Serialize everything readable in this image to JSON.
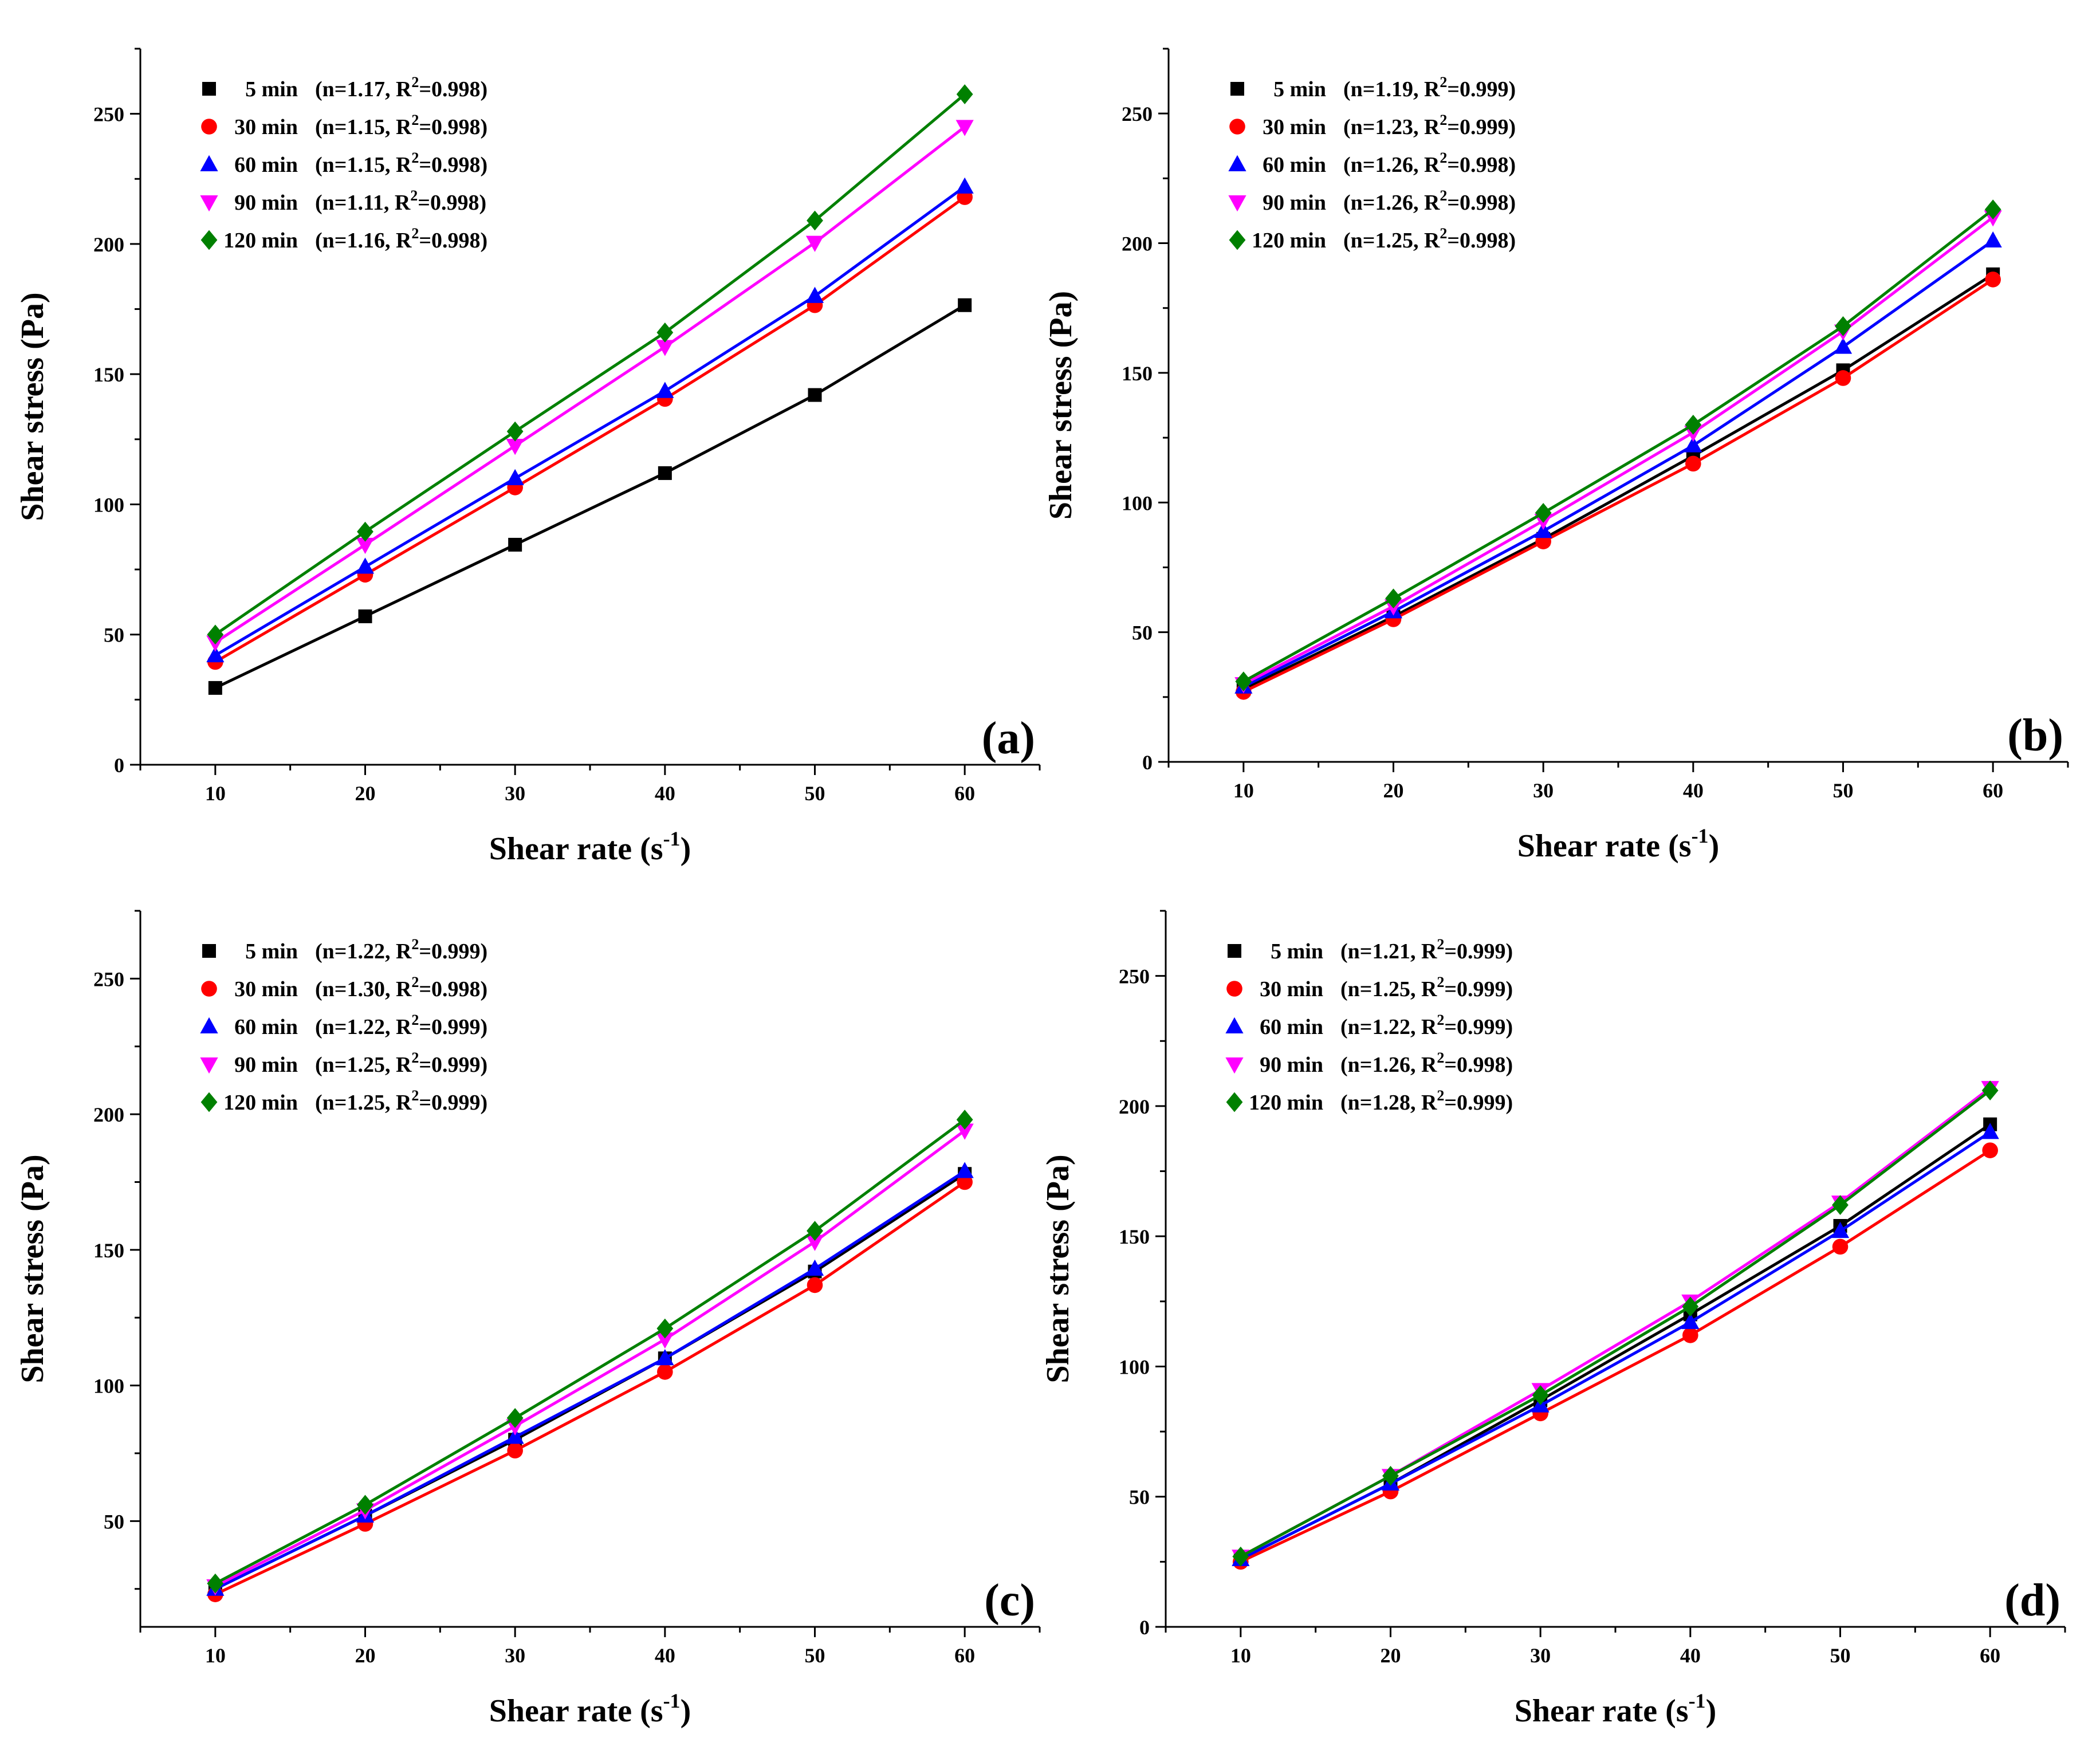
{
  "chart_data": [
    {
      "type": "line",
      "panel_label": "(a)",
      "xlabel": "Shear rate (s",
      "xlabel_sup": "-1",
      "xlabel_close": ")",
      "ylabel": "Shear stress (Pa)",
      "xlim": [
        5,
        65
      ],
      "ylim": [
        0,
        275
      ],
      "xticks": [
        10,
        20,
        30,
        40,
        50,
        60
      ],
      "yticks": [
        0,
        50,
        100,
        150,
        200,
        250
      ],
      "x": [
        10,
        20,
        30,
        40,
        50,
        60
      ],
      "legend_position": "top-left",
      "series": [
        {
          "name": "5 min",
          "stats": "(n=1.17, R",
          "r2": "=0.998)",
          "values": [
            29.5,
            57,
            84.5,
            112,
            142,
            176.5
          ]
        },
        {
          "name": "30 min",
          "stats": "(n=1.15, R",
          "r2": "=0.998)",
          "values": [
            39.5,
            73,
            106.5,
            140.5,
            176.5,
            218
          ]
        },
        {
          "name": "60 min",
          "stats": "(n=1.15, R",
          "r2": "=0.998)",
          "values": [
            42,
            76,
            110,
            143.5,
            180,
            222
          ]
        },
        {
          "name": "90 min",
          "stats": "(n=1.11, R",
          "r2": "=0.998)",
          "values": [
            47,
            84.5,
            122.5,
            160.5,
            200.5,
            245
          ]
        },
        {
          "name": "120 min",
          "stats": "(n=1.16, R",
          "r2": "=0.998)",
          "values": [
            50,
            89.5,
            128,
            166,
            209,
            257.5
          ]
        }
      ]
    },
    {
      "type": "line",
      "panel_label": "(b)",
      "xlabel": "Shear rate (s",
      "xlabel_sup": "-1",
      "xlabel_close": ")",
      "ylabel": "Shear stress (Pa)",
      "xlim": [
        5,
        65
      ],
      "ylim": [
        0,
        275
      ],
      "xticks": [
        10,
        20,
        30,
        40,
        50,
        60
      ],
      "yticks": [
        0,
        50,
        100,
        150,
        200,
        250
      ],
      "x": [
        10,
        20,
        30,
        40,
        50,
        60
      ],
      "legend_position": "top-left",
      "series": [
        {
          "name": "5 min",
          "stats": "(n=1.19, R",
          "r2": "=0.999)",
          "values": [
            28,
            56,
            86,
            118,
            151,
            188
          ]
        },
        {
          "name": "30 min",
          "stats": "(n=1.23, R",
          "r2": "=0.999)",
          "values": [
            27,
            55,
            85,
            115,
            148,
            186
          ]
        },
        {
          "name": "60 min",
          "stats": "(n=1.26, R",
          "r2": "=0.998)",
          "values": [
            29,
            58,
            89,
            122,
            160,
            201
          ]
        },
        {
          "name": "90 min",
          "stats": "(n=1.26, R",
          "r2": "=0.998)",
          "values": [
            30,
            60,
            93,
            127,
            166,
            210
          ]
        },
        {
          "name": "120 min",
          "stats": "(n=1.25, R",
          "r2": "=0.998)",
          "values": [
            31,
            63,
            96,
            130,
            168,
            213
          ]
        }
      ]
    },
    {
      "type": "line",
      "panel_label": "(c)",
      "xlabel": "Shear rate (s",
      "xlabel_sup": "-1",
      "xlabel_close": ")",
      "ylabel": "Shear stress (Pa)",
      "xlim": [
        5,
        65
      ],
      "ylim": [
        11,
        275
      ],
      "xticks": [
        10,
        20,
        30,
        40,
        50,
        60
      ],
      "yticks": [
        50,
        100,
        150,
        200,
        250
      ],
      "x": [
        10,
        20,
        30,
        40,
        50,
        60
      ],
      "legend_position": "top-left",
      "series": [
        {
          "name": "5 min",
          "stats": "(n=1.22, R",
          "r2": "=0.999)",
          "values": [
            25,
            52,
            80,
            110,
            142,
            178
          ]
        },
        {
          "name": "30 min",
          "stats": "(n=1.30, R",
          "r2": "=0.998)",
          "values": [
            23,
            49,
            76,
            105,
            137,
            175
          ]
        },
        {
          "name": "60 min",
          "stats": "(n=1.22, R",
          "r2": "=0.999)",
          "values": [
            25,
            52,
            81,
            110,
            143,
            179
          ]
        },
        {
          "name": "90 min",
          "stats": "(n=1.25, R",
          "r2": "=0.999)",
          "values": [
            26,
            54,
            85,
            117,
            153,
            194
          ]
        },
        {
          "name": "120 min",
          "stats": "(n=1.25, R",
          "r2": "=0.999)",
          "values": [
            27,
            56,
            88,
            121,
            157,
            198
          ]
        }
      ]
    },
    {
      "type": "line",
      "panel_label": "(d)",
      "xlabel": "Shear rate (s",
      "xlabel_sup": "-1",
      "xlabel_close": ")",
      "ylabel": "Shear stress (Pa)",
      "xlim": [
        5,
        65
      ],
      "ylim": [
        0,
        275
      ],
      "xticks": [
        10,
        20,
        30,
        40,
        50,
        60
      ],
      "yticks": [
        0,
        50,
        100,
        150,
        200,
        250
      ],
      "x": [
        10,
        20,
        30,
        40,
        50,
        60
      ],
      "legend_position": "top-left",
      "series": [
        {
          "name": "5 min",
          "stats": "(n=1.21, R",
          "r2": "=0.999)",
          "values": [
            26,
            55,
            87,
            120,
            154,
            193
          ]
        },
        {
          "name": "30 min",
          "stats": "(n=1.25, R",
          "r2": "=0.999)",
          "values": [
            25,
            52,
            82,
            112,
            146,
            183
          ]
        },
        {
          "name": "60 min",
          "stats": "(n=1.22, R",
          "r2": "=0.999)",
          "values": [
            26,
            55,
            85,
            117,
            152,
            190
          ]
        },
        {
          "name": "90 min",
          "stats": "(n=1.26, R",
          "r2": "=0.998)",
          "values": [
            27,
            58,
            91,
            125,
            163,
            207
          ]
        },
        {
          "name": "120 min",
          "stats": "(n=1.28, R",
          "r2": "=0.999)",
          "values": [
            27,
            58,
            89,
            123,
            162,
            206
          ]
        }
      ]
    }
  ],
  "series_style": [
    {
      "color": "#000000",
      "marker": "square"
    },
    {
      "color": "#ff0000",
      "marker": "circle"
    },
    {
      "color": "#0000ff",
      "marker": "triangle-up"
    },
    {
      "color": "#ff00ff",
      "marker": "triangle-down"
    },
    {
      "color": "#008000",
      "marker": "diamond"
    }
  ]
}
